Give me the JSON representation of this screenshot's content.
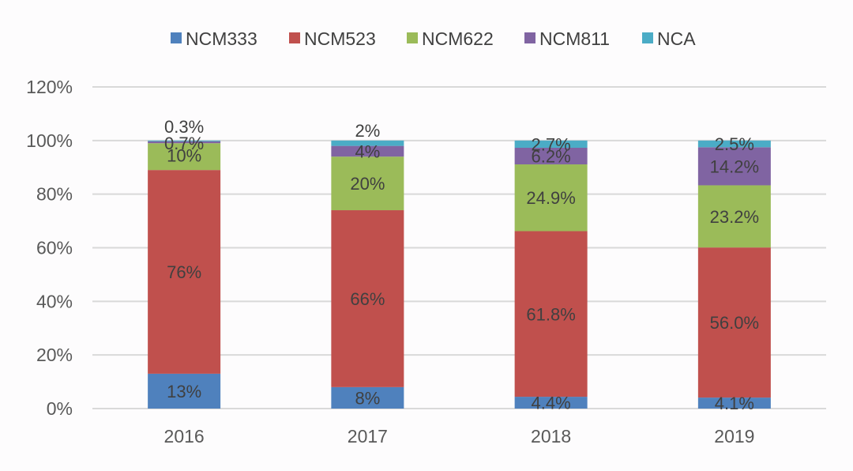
{
  "chart_data": {
    "type": "bar",
    "stacked": true,
    "title": "",
    "xlabel": "",
    "ylabel": "",
    "categories": [
      "2016",
      "2017",
      "2018",
      "2019"
    ],
    "ylim": [
      0,
      120
    ],
    "yticks": [
      "0%",
      "20%",
      "40%",
      "60%",
      "80%",
      "100%",
      "120%"
    ],
    "ytick_values": [
      0,
      20,
      40,
      60,
      80,
      100,
      120
    ],
    "grid": true,
    "legend_position": "top-center",
    "series": [
      {
        "name": "NCM333",
        "color": "#4f81bd",
        "values": [
          13,
          8,
          4.4,
          4.1
        ],
        "labels": [
          "13%",
          "8%",
          "4.4%",
          "4.1%"
        ]
      },
      {
        "name": "NCM523",
        "color": "#c0504d",
        "values": [
          76,
          66,
          61.8,
          56.0
        ],
        "labels": [
          "76%",
          "66%",
          "61.8%",
          "56.0%"
        ]
      },
      {
        "name": "NCM622",
        "color": "#9bbb59",
        "values": [
          10,
          20,
          24.9,
          23.2
        ],
        "labels": [
          "10%",
          "20%",
          "24.9%",
          "23.2%"
        ]
      },
      {
        "name": "NCM811",
        "color": "#8064a2",
        "values": [
          0.7,
          4,
          6.2,
          14.2
        ],
        "labels": [
          "0.7%",
          "4%",
          "6.2%",
          "14.2%"
        ]
      },
      {
        "name": "NCA",
        "color": "#4bacc6",
        "values": [
          0.3,
          2,
          2.7,
          2.5
        ],
        "labels": [
          "0.3%",
          "2%",
          "2.7%",
          "2.5%"
        ]
      }
    ]
  }
}
